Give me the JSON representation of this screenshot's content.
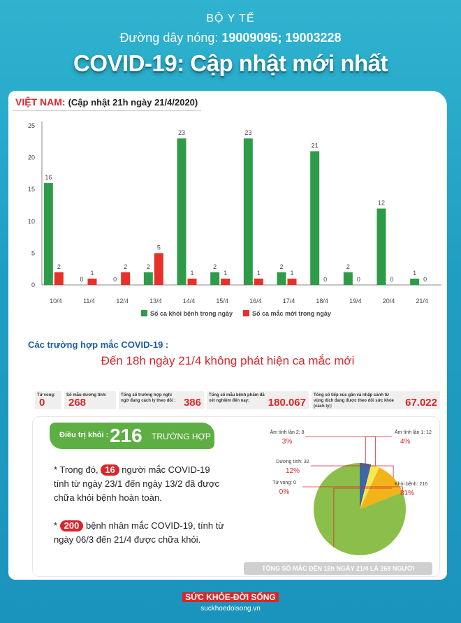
{
  "header": {
    "ministry": "BỘ Y TẾ",
    "hotline_label": "Đường dây nóng: ",
    "hotline_numbers": "19009095; 19003228",
    "title": "COVID-19: Cập nhật mới nhất"
  },
  "vietnam": {
    "label": "VIỆT NAM:",
    "update": "(Cập nhật 21h ngày 21/4/2020)"
  },
  "chart_data": {
    "type": "bar",
    "categories": [
      "10/4",
      "11/4",
      "12/4",
      "13/4",
      "14/4",
      "15/4",
      "16/4",
      "17/4",
      "18/4",
      "19/4",
      "20/4",
      "21/4"
    ],
    "series": [
      {
        "name": "Số ca khỏi bệnh trong ngày",
        "color": "#2e9b48",
        "values": [
          16,
          0,
          0,
          2,
          23,
          2,
          23,
          2,
          21,
          2,
          12,
          1
        ]
      },
      {
        "name": "Số ca mắc mới trong ngày",
        "color": "#e8302b",
        "values": [
          2,
          1,
          2,
          5,
          1,
          1,
          1,
          1,
          0,
          0,
          0,
          0
        ]
      }
    ],
    "yticks": [
      0,
      5,
      10,
      15,
      20,
      25
    ],
    "ylim": [
      0,
      25
    ],
    "legend": "bottom"
  },
  "cases": {
    "title": "Các trường hợp mắc COVID-19 :",
    "subtitle": "Đến 18h ngày 21/4 không phát hiện ca mắc mới"
  },
  "stats": [
    {
      "label": "Tử vong:",
      "value": "0"
    },
    {
      "label": "Số mẫu dương tính:",
      "value": "268"
    },
    {
      "label": "Tổng số trường hợp nghi ngờ đang cách ly theo dõi :",
      "value": "386"
    },
    {
      "label": "Tổng số mẫu bệnh phẩm đã xét nghiệm đến nay:",
      "value": "180.067"
    },
    {
      "label": "Tổng số tiếp xúc gần và nhập cảnh từ vùng dịch đang được theo dõi sức khỏe (cách ly):",
      "value": "67.022"
    }
  ],
  "treatment": {
    "label": "Điều trị khỏi :",
    "number": "216",
    "unit": "TRƯỜNG HỢP"
  },
  "notes": {
    "n1_pre": "* Trong đó, ",
    "n1_num": "16",
    "n1_post": " người mắc COVID-19 tính từ ngày 23/1 đến ngày 13/2 đã được chữa khỏi bệnh hoàn toàn.",
    "n2_pre": "* ",
    "n2_num": "200",
    "n2_post": " bệnh nhân mắc COVID-19, tính từ ngày 06/3 đến 21/4 được chữa khỏi."
  },
  "pie_data": {
    "type": "pie",
    "slices": [
      {
        "label": "Khỏi bệnh: 216",
        "pct": "81%",
        "value": 81,
        "color": "#8cbf4a"
      },
      {
        "label": "Tử vong: 0",
        "pct": "0%",
        "value": 0,
        "color": "#d9262a"
      },
      {
        "label": "Dương tính: 32",
        "pct": "12%",
        "value": 12,
        "color": "#f2b31b"
      },
      {
        "label": "Âm tính lần 2: 8",
        "pct": "3%",
        "value": 3,
        "color": "#f5e94b"
      },
      {
        "label": "Âm tính lần 1: 12",
        "pct": "4%",
        "value": 4,
        "color": "#3c67a8"
      }
    ]
  },
  "footer": {
    "total": "TỔNG SỐ MẮC ĐẾN 18h NGÀY 21/4 LÀ 268 NGƯỜI",
    "logo": "SỨC KHỎE-ĐỜI SỐNG",
    "url": "suckhoedoisong.vn"
  }
}
